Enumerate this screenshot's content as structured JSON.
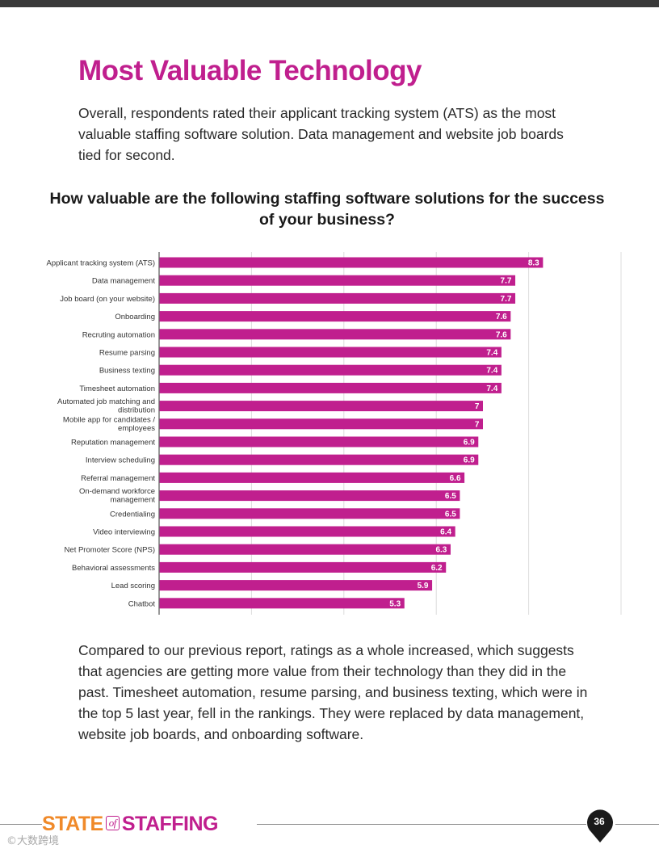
{
  "page": {
    "title": "Most Valuable Technology",
    "intro": "Overall, respondents rated their applicant tracking system (ATS) as the most valuable staffing software solution. Data management and website job boards tied for second.",
    "outro": "Compared to our previous report, ratings as a whole increased, which suggests that agencies are getting more value from their technology than they did in the past. Timesheet automation, resume parsing, and business texting, which were in the top 5 last year, fell in the rankings. They were replaced by data management, website job boards, and onboarding software."
  },
  "chart_data": {
    "type": "bar",
    "orientation": "horizontal",
    "title": "How valuable are the following staffing software solutions for the success of your business?",
    "xlim": [
      0,
      10
    ],
    "gridlines": [
      2,
      4,
      6,
      8,
      10
    ],
    "bar_color": "#c01f8e",
    "label_color": "#ffffff",
    "categories": [
      [
        "Applicant tracking system (ATS)"
      ],
      [
        "Data management"
      ],
      [
        "Job board (on your website)"
      ],
      [
        "Onboarding"
      ],
      [
        "Recruting automation"
      ],
      [
        "Resume parsing"
      ],
      [
        "Business texting"
      ],
      [
        "Timesheet automation"
      ],
      [
        "Automated job matching and",
        "distribution"
      ],
      [
        "Mobile app for candidates /",
        "employees"
      ],
      [
        "Reputation management"
      ],
      [
        "Interview scheduling"
      ],
      [
        "Referral management"
      ],
      [
        "On-demand workforce",
        "management"
      ],
      [
        "Credentialing"
      ],
      [
        "Video interviewing"
      ],
      [
        "Net Promoter Score (NPS)"
      ],
      [
        "Behavioral assessments"
      ],
      [
        "Lead scoring"
      ],
      [
        "Chatbot"
      ]
    ],
    "values": [
      8.3,
      7.7,
      7.7,
      7.6,
      7.6,
      7.4,
      7.4,
      7.4,
      7,
      7,
      6.9,
      6.9,
      6.6,
      6.5,
      6.5,
      6.4,
      6.3,
      6.2,
      5.9,
      5.3
    ]
  },
  "footer": {
    "brand_part1": "STATE",
    "brand_of": "of",
    "brand_part2": "STAFFING",
    "page_number": "36",
    "watermark": "大数跨境"
  },
  "colors": {
    "accent": "#c01f8e",
    "orange": "#f08a2a"
  }
}
